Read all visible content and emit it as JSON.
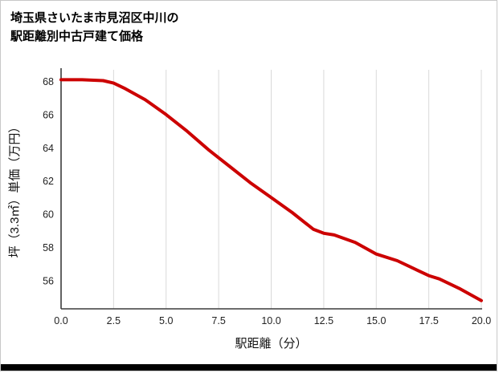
{
  "title": {
    "line1": "埼玉県さいたま市見沼区中川の",
    "line2": "駅距離別中古戸建て価格"
  },
  "chart_data": {
    "type": "line",
    "title": "埼玉県さいたま市見沼区中川の駅距離別中古戸建て価格",
    "xlabel": "駅距離（分）",
    "ylabel": "坪（3.3㎡）単価（万円）",
    "x": [
      0,
      1,
      2,
      2.5,
      3,
      4,
      5,
      6,
      7,
      7.5,
      8,
      9,
      10,
      11,
      12,
      12.5,
      13,
      14,
      15,
      16,
      17,
      17.5,
      18,
      19,
      20
    ],
    "y": [
      68.1,
      68.1,
      68.05,
      67.9,
      67.6,
      66.9,
      66.0,
      65.0,
      63.9,
      63.4,
      62.9,
      61.9,
      61.0,
      60.1,
      59.1,
      58.85,
      58.75,
      58.3,
      57.6,
      57.2,
      56.6,
      56.3,
      56.1,
      55.5,
      54.8
    ],
    "xticks": [
      "0.0",
      "2.5",
      "5.0",
      "7.5",
      "10.0",
      "12.5",
      "15.0",
      "17.5",
      "20.0"
    ],
    "xtick_values": [
      0,
      2.5,
      5,
      7.5,
      10,
      12.5,
      15,
      17.5,
      20
    ],
    "yticks": [
      "56",
      "58",
      "60",
      "62",
      "64",
      "66",
      "68"
    ],
    "ytick_values": [
      56,
      58,
      60,
      62,
      64,
      66,
      68
    ],
    "xlim": [
      0,
      20
    ],
    "ylim": [
      54.3,
      68.7
    ],
    "line_color": "#cc0000",
    "grid_color": "#d9d9d9",
    "axis_color": "#3c3c3c",
    "tick_label_color": "#222222",
    "grid": "vertical-only",
    "legend": "none"
  }
}
